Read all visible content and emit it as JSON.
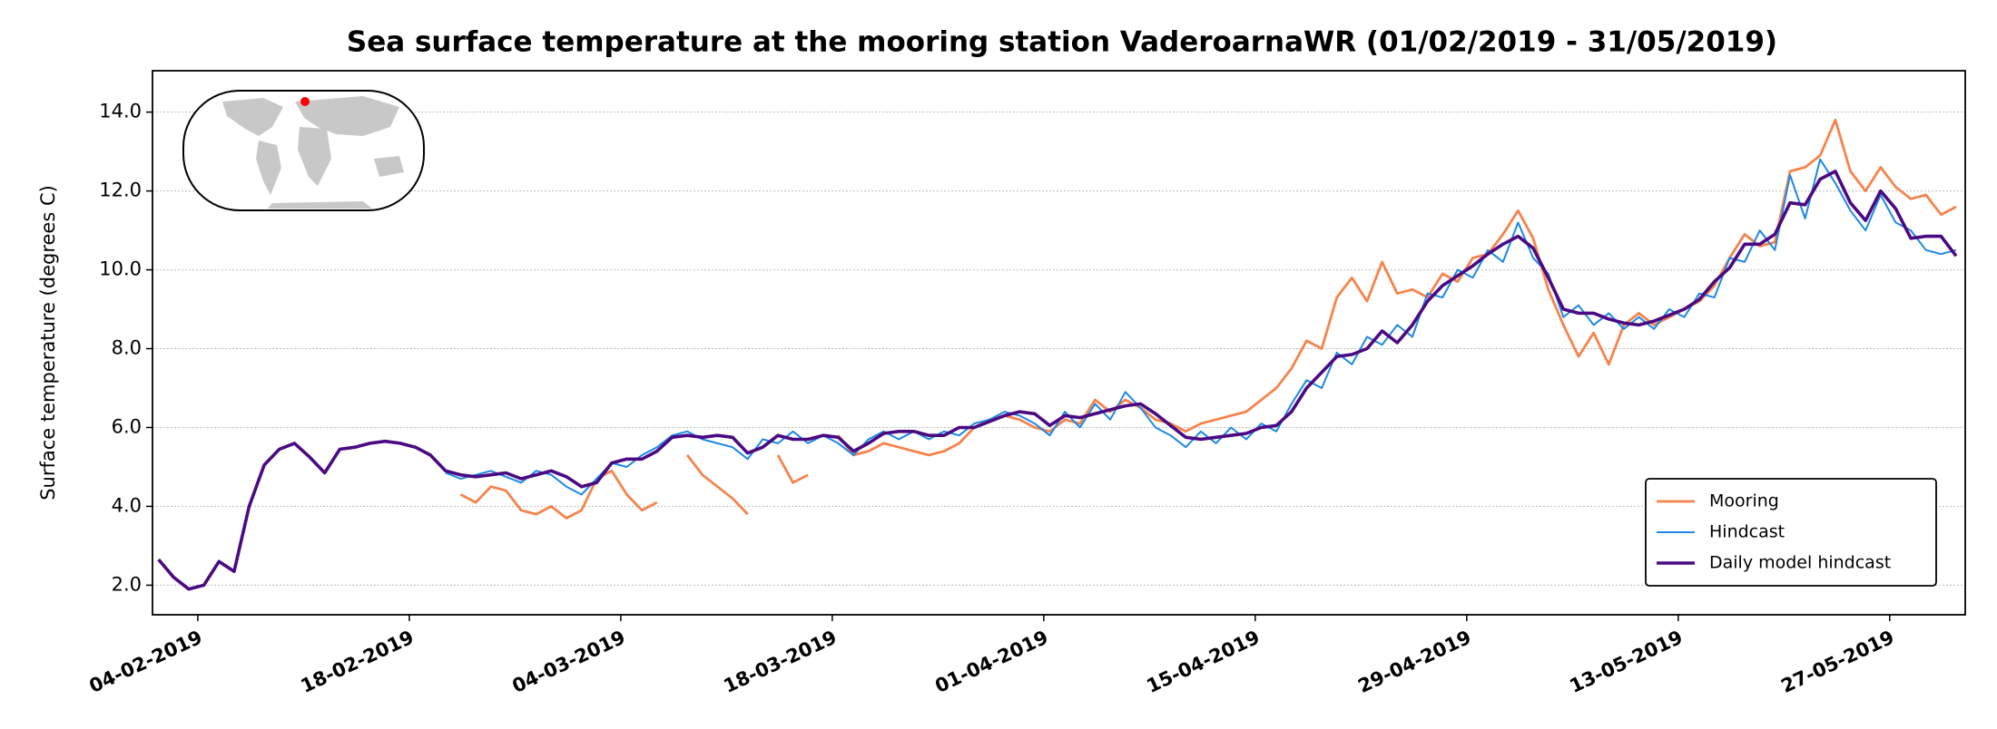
{
  "chart_data": {
    "type": "line",
    "title": "Sea surface temperature at the mooring station VaderoarnaWR (01/02/2019 - 31/05/2019)",
    "y_label": "Surface temperature (degrees C)",
    "x": [
      "2019-02-01",
      "2019-02-02",
      "2019-02-03",
      "2019-02-04",
      "2019-02-05",
      "2019-02-06",
      "2019-02-07",
      "2019-02-08",
      "2019-02-09",
      "2019-02-10",
      "2019-02-11",
      "2019-02-12",
      "2019-02-13",
      "2019-02-14",
      "2019-02-15",
      "2019-02-16",
      "2019-02-17",
      "2019-02-18",
      "2019-02-19",
      "2019-02-20",
      "2019-02-21",
      "2019-02-22",
      "2019-02-23",
      "2019-02-24",
      "2019-02-25",
      "2019-02-26",
      "2019-02-27",
      "2019-02-28",
      "2019-03-01",
      "2019-03-02",
      "2019-03-03",
      "2019-03-04",
      "2019-03-05",
      "2019-03-06",
      "2019-03-07",
      "2019-03-08",
      "2019-03-09",
      "2019-03-10",
      "2019-03-11",
      "2019-03-12",
      "2019-03-13",
      "2019-03-14",
      "2019-03-15",
      "2019-03-16",
      "2019-03-17",
      "2019-03-18",
      "2019-03-19",
      "2019-03-20",
      "2019-03-21",
      "2019-03-22",
      "2019-03-23",
      "2019-03-24",
      "2019-03-25",
      "2019-03-26",
      "2019-03-27",
      "2019-03-28",
      "2019-03-29",
      "2019-03-30",
      "2019-03-31",
      "2019-04-01",
      "2019-04-02",
      "2019-04-03",
      "2019-04-04",
      "2019-04-05",
      "2019-04-06",
      "2019-04-07",
      "2019-04-08",
      "2019-04-09",
      "2019-04-10",
      "2019-04-11",
      "2019-04-12",
      "2019-04-13",
      "2019-04-14",
      "2019-04-15",
      "2019-04-16",
      "2019-04-17",
      "2019-04-18",
      "2019-04-19",
      "2019-04-20",
      "2019-04-21",
      "2019-04-22",
      "2019-04-23",
      "2019-04-24",
      "2019-04-25",
      "2019-04-26",
      "2019-04-27",
      "2019-04-28",
      "2019-04-29",
      "2019-04-30",
      "2019-05-01",
      "2019-05-02",
      "2019-05-03",
      "2019-05-04",
      "2019-05-05",
      "2019-05-06",
      "2019-05-07",
      "2019-05-08",
      "2019-05-09",
      "2019-05-10",
      "2019-05-11",
      "2019-05-12",
      "2019-05-13",
      "2019-05-14",
      "2019-05-15",
      "2019-05-16",
      "2019-05-17",
      "2019-05-18",
      "2019-05-19",
      "2019-05-20",
      "2019-05-21",
      "2019-05-22",
      "2019-05-23",
      "2019-05-24",
      "2019-05-25",
      "2019-05-26",
      "2019-05-27",
      "2019-05-28",
      "2019-05-29",
      "2019-05-30",
      "2019-05-31"
    ],
    "series": [
      {
        "name": "Mooring",
        "color": "#f5844c",
        "width": 2.8,
        "values": [
          null,
          null,
          null,
          null,
          null,
          null,
          null,
          null,
          null,
          null,
          null,
          null,
          null,
          null,
          null,
          null,
          null,
          null,
          null,
          null,
          4.3,
          4.1,
          4.5,
          4.4,
          3.9,
          3.8,
          4.0,
          3.7,
          3.9,
          4.7,
          4.9,
          4.3,
          3.9,
          4.1,
          null,
          5.3,
          4.8,
          4.5,
          4.2,
          3.8,
          null,
          5.3,
          4.6,
          4.8,
          null,
          5.8,
          5.3,
          5.4,
          5.6,
          5.5,
          5.4,
          5.3,
          5.4,
          5.6,
          6.0,
          6.2,
          6.3,
          6.2,
          6.0,
          5.9,
          6.2,
          6.1,
          6.7,
          6.4,
          6.7,
          6.5,
          6.2,
          6.1,
          5.9,
          6.1,
          6.2,
          6.3,
          6.4,
          6.7,
          7.0,
          7.5,
          8.2,
          8.0,
          9.3,
          9.8,
          9.2,
          10.2,
          9.4,
          9.5,
          9.3,
          9.9,
          9.7,
          10.3,
          10.4,
          10.9,
          11.5,
          10.8,
          9.5,
          8.6,
          7.8,
          8.4,
          7.6,
          8.6,
          8.9,
          8.6,
          8.8,
          9.0,
          9.2,
          9.6,
          10.3,
          10.9,
          10.6,
          10.7,
          12.5,
          12.6,
          12.9,
          13.8,
          12.5,
          12.0,
          12.6,
          12.1,
          11.8,
          11.9,
          11.4,
          11.6
        ]
      },
      {
        "name": "Hindcast",
        "color": "#1e88e5",
        "width": 2,
        "values": [
          null,
          null,
          null,
          null,
          null,
          null,
          null,
          null,
          null,
          null,
          null,
          null,
          null,
          null,
          null,
          null,
          null,
          null,
          null,
          4.85,
          4.7,
          4.8,
          4.9,
          4.75,
          4.6,
          4.9,
          4.8,
          4.5,
          4.3,
          4.7,
          5.1,
          5.0,
          5.3,
          5.5,
          5.8,
          5.9,
          5.7,
          5.6,
          5.5,
          5.2,
          5.7,
          5.6,
          5.9,
          5.6,
          5.8,
          5.6,
          5.3,
          5.7,
          5.9,
          5.7,
          5.9,
          5.7,
          5.9,
          5.8,
          6.1,
          6.2,
          6.4,
          6.3,
          6.1,
          5.8,
          6.4,
          6.0,
          6.6,
          6.2,
          6.9,
          6.5,
          6.0,
          5.8,
          5.5,
          5.9,
          5.6,
          6.0,
          5.7,
          6.1,
          5.9,
          6.6,
          7.2,
          7.0,
          7.9,
          7.6,
          8.3,
          8.1,
          8.6,
          8.3,
          9.4,
          9.3,
          10.0,
          9.8,
          10.5,
          10.2,
          11.2,
          10.3,
          9.9,
          8.8,
          9.1,
          8.6,
          8.9,
          8.5,
          8.8,
          8.5,
          9.0,
          8.8,
          9.4,
          9.3,
          10.3,
          10.2,
          11.0,
          10.5,
          12.4,
          11.3,
          12.8,
          12.2,
          11.5,
          11.0,
          11.9,
          11.2,
          11.0,
          10.5,
          10.4,
          10.5
        ]
      },
      {
        "name": "Daily model hindcast",
        "color": "#4b0a82",
        "width": 3.6,
        "values": [
          2.65,
          2.2,
          1.9,
          2.0,
          2.6,
          2.35,
          4.0,
          5.05,
          5.45,
          5.6,
          5.25,
          4.85,
          5.45,
          5.5,
          5.6,
          5.65,
          5.6,
          5.5,
          5.3,
          4.9,
          4.8,
          4.75,
          4.8,
          4.85,
          4.7,
          4.8,
          4.9,
          4.75,
          4.5,
          4.6,
          5.1,
          5.2,
          5.2,
          5.4,
          5.75,
          5.8,
          5.75,
          5.8,
          5.75,
          5.35,
          5.5,
          5.8,
          5.7,
          5.7,
          5.8,
          5.75,
          5.4,
          5.6,
          5.85,
          5.9,
          5.9,
          5.8,
          5.8,
          6.0,
          6.0,
          6.15,
          6.3,
          6.4,
          6.35,
          6.05,
          6.3,
          6.25,
          6.35,
          6.45,
          6.55,
          6.6,
          6.35,
          6.05,
          5.75,
          5.7,
          5.75,
          5.8,
          5.85,
          6.0,
          6.05,
          6.4,
          7.0,
          7.4,
          7.8,
          7.85,
          8.0,
          8.45,
          8.15,
          8.6,
          9.2,
          9.6,
          9.85,
          10.1,
          10.4,
          10.65,
          10.85,
          10.55,
          9.8,
          9.0,
          8.9,
          8.9,
          8.75,
          8.65,
          8.6,
          8.7,
          8.85,
          9.0,
          9.25,
          9.7,
          10.05,
          10.65,
          10.65,
          10.9,
          11.7,
          11.65,
          12.3,
          12.5,
          11.7,
          11.25,
          12.0,
          11.55,
          10.8,
          10.85,
          10.85,
          10.35
        ]
      }
    ],
    "xlim": [
      "2019-02-01",
      "2019-06-01"
    ],
    "xticks": [
      {
        "value": "2019-02-04",
        "label": "04-02-2019"
      },
      {
        "value": "2019-02-18",
        "label": "18-02-2019"
      },
      {
        "value": "2019-03-04",
        "label": "04-03-2019"
      },
      {
        "value": "2019-03-18",
        "label": "18-03-2019"
      },
      {
        "value": "2019-04-01",
        "label": "01-04-2019"
      },
      {
        "value": "2019-04-15",
        "label": "15-04-2019"
      },
      {
        "value": "2019-04-29",
        "label": "29-04-2019"
      },
      {
        "value": "2019-05-13",
        "label": "13-05-2019"
      },
      {
        "value": "2019-05-27",
        "label": "27-05-2019"
      }
    ],
    "ylim": [
      1.25,
      15.05
    ],
    "yticks": [
      {
        "value": 2,
        "label": "2.0"
      },
      {
        "value": 4,
        "label": "4.0"
      },
      {
        "value": 6,
        "label": "6.0"
      },
      {
        "value": 8,
        "label": "8.0"
      },
      {
        "value": 10,
        "label": "10.0"
      },
      {
        "value": 12,
        "label": "12.0"
      },
      {
        "value": 14,
        "label": "14.0"
      }
    ],
    "grid": true,
    "legend": "lower right"
  }
}
